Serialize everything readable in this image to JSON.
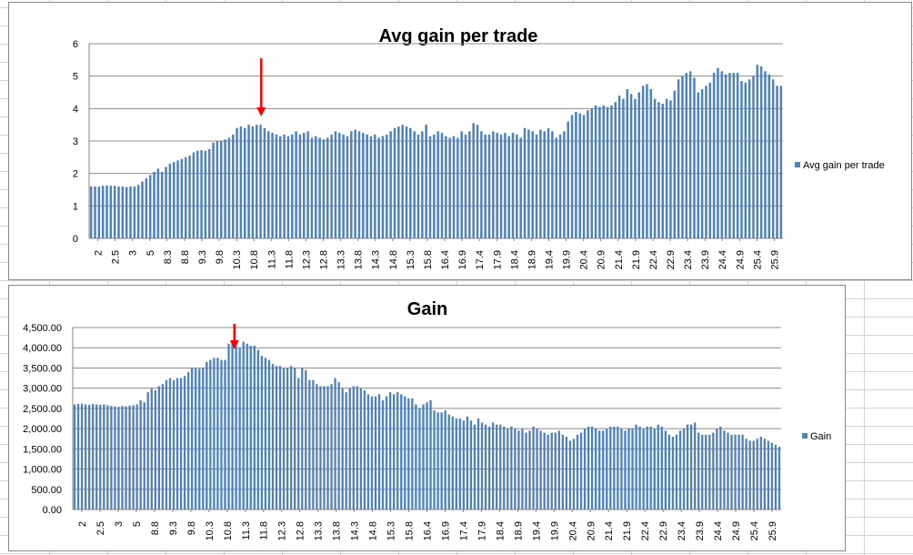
{
  "charts": [
    {
      "title": "Avg gain per trade",
      "legend": "Avg gain per trade",
      "y_ticks": [
        "0",
        "1",
        "2",
        "3",
        "4",
        "5",
        "6"
      ],
      "x_tick_labels": [
        "2",
        "2.5",
        "3",
        "5",
        "8.3",
        "8.8",
        "9.3",
        "9.8",
        "10.3",
        "10.8",
        "11.3",
        "11.8",
        "12.3",
        "12.8",
        "13.3",
        "13.8",
        "14.3",
        "14.8",
        "15.3",
        "15.8",
        "16.4",
        "16.9",
        "17.4",
        "17.9",
        "18.4",
        "18.9",
        "19.4",
        "19.9",
        "20.4",
        "20.9",
        "21.4",
        "21.9",
        "22.4",
        "22.9",
        "23.4",
        "23.9",
        "24.4",
        "24.9",
        "25.4",
        "25.9"
      ]
    },
    {
      "title": "Gain",
      "legend": "Gain",
      "y_ticks": [
        "0.00",
        "500.00",
        "1,000.00",
        "1,500.00",
        "2,000.00",
        "2,500.00",
        "3,000.00",
        "3,500.00",
        "4,000.00",
        "4,500.00"
      ],
      "x_tick_labels": [
        "2",
        "2.5",
        "3",
        "5",
        "8.8",
        "9.3",
        "9.8",
        "10.3",
        "10.8",
        "11.3",
        "11.8",
        "12.3",
        "12.8",
        "13.3",
        "13.8",
        "14.3",
        "14.8",
        "15.3",
        "15.8",
        "16.4",
        "16.9",
        "17.4",
        "17.9",
        "18.4",
        "18.9",
        "19.4",
        "19.9",
        "20.4",
        "20.9",
        "21.4",
        "21.9",
        "22.4",
        "22.9",
        "23.4",
        "23.9",
        "24.4",
        "24.9",
        "25.4",
        "25.9"
      ]
    }
  ],
  "chart_data": [
    {
      "type": "bar",
      "title": "Avg gain per trade",
      "ylim": [
        0,
        6
      ],
      "grid": true,
      "legend_position": "right",
      "series_color": "#4f81bd",
      "annotation_color": "#ff0000",
      "annotation_at_category": "10.8",
      "x_tick_labels": [
        "2",
        "2.5",
        "3",
        "5",
        "8.3",
        "8.8",
        "9.3",
        "9.8",
        "10.3",
        "10.8",
        "11.3",
        "11.8",
        "12.3",
        "12.8",
        "13.3",
        "13.8",
        "14.3",
        "14.8",
        "15.3",
        "15.8",
        "16.4",
        "16.9",
        "17.4",
        "17.9",
        "18.4",
        "18.9",
        "19.4",
        "19.9",
        "20.4",
        "20.9",
        "21.4",
        "21.9",
        "22.4",
        "22.9",
        "23.4",
        "23.9",
        "24.4",
        "24.9",
        "25.4",
        "25.9"
      ],
      "series": [
        {
          "name": "Avg gain per trade",
          "values": [
            1.6,
            1.6,
            1.6,
            1.62,
            1.63,
            1.62,
            1.62,
            1.6,
            1.6,
            1.58,
            1.6,
            1.6,
            1.65,
            1.75,
            1.85,
            1.95,
            2.05,
            2.15,
            2.05,
            2.2,
            2.3,
            2.35,
            2.4,
            2.45,
            2.5,
            2.55,
            2.65,
            2.7,
            2.72,
            2.7,
            2.75,
            2.95,
            3.0,
            3.0,
            3.05,
            3.1,
            3.2,
            3.4,
            3.45,
            3.4,
            3.5,
            3.45,
            3.5,
            3.5,
            3.4,
            3.3,
            3.25,
            3.2,
            3.15,
            3.2,
            3.15,
            3.2,
            3.3,
            3.2,
            3.25,
            3.3,
            3.1,
            3.15,
            3.1,
            3.05,
            3.1,
            3.2,
            3.3,
            3.25,
            3.2,
            3.15,
            3.3,
            3.35,
            3.3,
            3.25,
            3.2,
            3.15,
            3.2,
            3.1,
            3.15,
            3.2,
            3.3,
            3.4,
            3.45,
            3.5,
            3.45,
            3.4,
            3.3,
            3.2,
            3.3,
            3.5,
            3.15,
            3.2,
            3.3,
            3.25,
            3.15,
            3.1,
            3.15,
            3.1,
            3.3,
            3.2,
            3.3,
            3.55,
            3.5,
            3.3,
            3.2,
            3.2,
            3.3,
            3.25,
            3.2,
            3.25,
            3.15,
            3.25,
            3.2,
            3.1,
            3.4,
            3.35,
            3.3,
            3.2,
            3.35,
            3.3,
            3.4,
            3.3,
            3.1,
            3.2,
            3.3,
            3.6,
            3.8,
            3.9,
            3.85,
            3.8,
            3.95,
            4.0,
            4.1,
            4.05,
            4.1,
            4.05,
            4.1,
            4.2,
            4.4,
            4.3,
            4.6,
            4.45,
            4.3,
            4.5,
            4.7,
            4.75,
            4.6,
            4.3,
            4.2,
            4.15,
            4.3,
            4.25,
            4.55,
            4.9,
            5.0,
            5.1,
            5.15,
            4.95,
            4.5,
            4.6,
            4.7,
            4.8,
            5.1,
            5.25,
            5.15,
            5.05,
            5.1,
            5.1,
            5.1,
            4.85,
            4.8,
            4.9,
            5.0,
            5.35,
            5.3,
            5.15,
            5.05,
            4.9,
            4.7,
            4.7
          ]
        }
      ]
    },
    {
      "type": "bar",
      "title": "Gain",
      "ylim": [
        0,
        4500
      ],
      "grid": true,
      "legend_position": "right",
      "series_color": "#4f81bd",
      "annotation_color": "#ff0000",
      "annotation_at_category": "10.8",
      "x_tick_labels": [
        "2",
        "2.5",
        "3",
        "5",
        "8.8",
        "9.3",
        "9.8",
        "10.3",
        "10.8",
        "11.3",
        "11.8",
        "12.3",
        "12.8",
        "13.3",
        "13.8",
        "14.3",
        "14.8",
        "15.3",
        "15.8",
        "16.4",
        "16.9",
        "17.4",
        "17.9",
        "18.4",
        "18.9",
        "19.4",
        "19.9",
        "20.4",
        "20.9",
        "21.4",
        "21.9",
        "22.4",
        "22.9",
        "23.4",
        "23.9",
        "24.4",
        "24.9",
        "25.4",
        "25.9"
      ],
      "series": [
        {
          "name": "Gain",
          "values": [
            2600,
            2610,
            2620,
            2600,
            2590,
            2610,
            2600,
            2590,
            2600,
            2580,
            2560,
            2550,
            2540,
            2560,
            2550,
            2570,
            2580,
            2600,
            2700,
            2650,
            2900,
            3000,
            2950,
            3050,
            3100,
            3200,
            3250,
            3200,
            3250,
            3250,
            3300,
            3400,
            3500,
            3500,
            3480,
            3500,
            3650,
            3700,
            3750,
            3750,
            3700,
            3700,
            4100,
            4100,
            4050,
            4000,
            4150,
            4100,
            4050,
            4050,
            3950,
            3800,
            3750,
            3700,
            3600,
            3550,
            3550,
            3500,
            3500,
            3550,
            3500,
            3250,
            3500,
            3450,
            3200,
            3200,
            3100,
            3050,
            3050,
            3050,
            3100,
            3250,
            3150,
            3000,
            2900,
            3000,
            3050,
            3050,
            3000,
            2950,
            2850,
            2800,
            2800,
            2850,
            2700,
            2800,
            2900,
            2850,
            2900,
            2850,
            2800,
            2750,
            2750,
            2600,
            2500,
            2600,
            2650,
            2700,
            2450,
            2400,
            2400,
            2450,
            2350,
            2300,
            2250,
            2250,
            2200,
            2300,
            2200,
            2100,
            2250,
            2150,
            2100,
            2050,
            2150,
            2100,
            2100,
            2050,
            2000,
            2050,
            2000,
            1950,
            2000,
            1900,
            1950,
            2050,
            2000,
            1950,
            1900,
            1850,
            1900,
            1900,
            1950,
            1850,
            1800,
            1700,
            1750,
            1850,
            1900,
            2000,
            2050,
            2050,
            2000,
            1950,
            1950,
            2000,
            2050,
            2050,
            2050,
            2000,
            1950,
            2000,
            2000,
            2100,
            2050,
            2000,
            2050,
            2050,
            2000,
            2100,
            2050,
            1950,
            1850,
            1800,
            1850,
            1950,
            2000,
            2100,
            2100,
            2150,
            1900,
            1850,
            1850,
            1850,
            1900,
            2000,
            2050,
            1950,
            1900,
            1850,
            1850,
            1850,
            1850,
            1750,
            1700,
            1700,
            1750,
            1800,
            1750,
            1700,
            1650,
            1600,
            1550
          ]
        }
      ]
    }
  ]
}
